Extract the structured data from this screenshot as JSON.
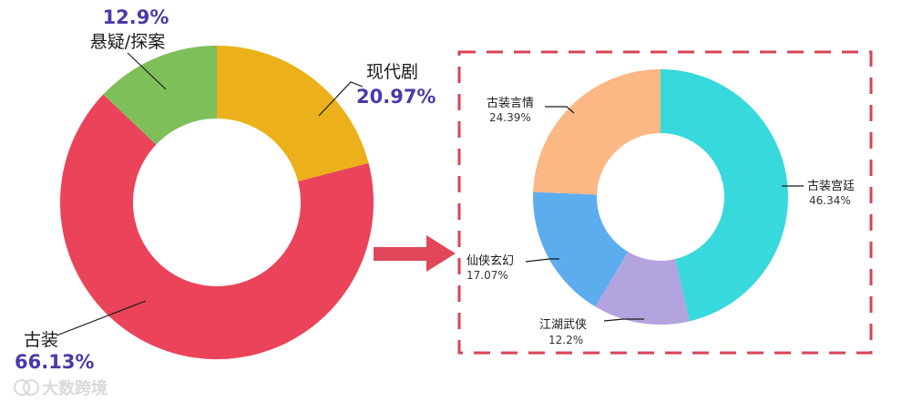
{
  "chart_data": [
    {
      "type": "pie",
      "donut": true,
      "series": [
        {
          "label": "古装",
          "value": 66.13,
          "value_label": "66.13%",
          "color": "#ea435a"
        },
        {
          "label": "悬疑/探案",
          "value": 12.9,
          "value_label": "12.9%",
          "color": "#7fbf5a"
        },
        {
          "label": "现代剧",
          "value": 20.97,
          "value_label": "20.97%",
          "color": "#ecb11a"
        }
      ]
    },
    {
      "type": "pie",
      "donut": true,
      "series": [
        {
          "label": "古装宫廷",
          "value": 46.34,
          "value_label": "46.34%",
          "color": "#38d9dc"
        },
        {
          "label": "江湖武侠",
          "value": 12.2,
          "value_label": "12.2%",
          "color": "#b3a3df"
        },
        {
          "label": "仙侠玄幻",
          "value": 17.07,
          "value_label": "17.07%",
          "color": "#5dadee"
        },
        {
          "label": "古装言情",
          "value": 24.39,
          "value_label": "24.39%",
          "color": "#fbb784"
        }
      ]
    }
  ],
  "colors": {
    "frame": "#d94356",
    "arrow": "#e0475a"
  },
  "watermark": {
    "text": "大数跨境",
    "icon": "logo-icon"
  }
}
